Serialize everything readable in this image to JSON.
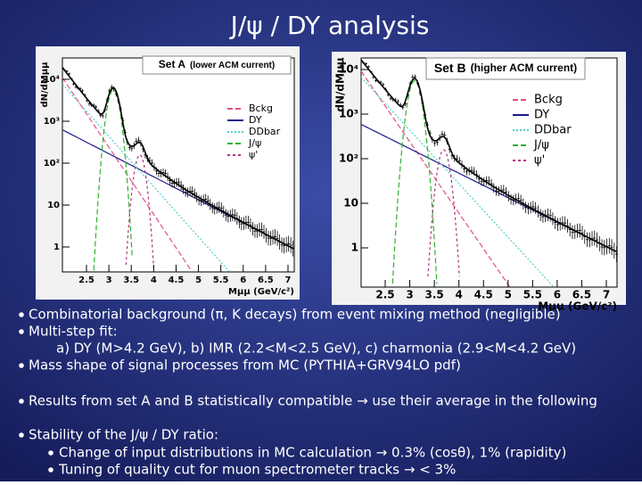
{
  "title": "J/ψ / DY analysis",
  "plots": [
    {
      "label": "Set A",
      "note": "(lower ACM current)",
      "ylabel": "dN/dMμμ",
      "xlabel": "Mμμ (GeV/c²)",
      "yticks": [
        "10⁴",
        "10³",
        "10²",
        "10",
        "1"
      ],
      "xticks": [
        "2.5",
        "3",
        "3.5",
        "4",
        "4.5",
        "5",
        "5.5",
        "6",
        "6.5",
        "7"
      ],
      "legend": [
        "Bckg",
        "DY",
        "DDbar",
        "J/ψ",
        "ψ'"
      ]
    },
    {
      "label": "Set B",
      "note": "(higher ACM current)",
      "ylabel": "dN/dMμμ",
      "xlabel": "Mμμ (GeV/c²)",
      "yticks": [
        "10⁴",
        "10³",
        "10²",
        "10",
        "1"
      ],
      "xticks": [
        "2.5",
        "3",
        "3.5",
        "4",
        "4.5",
        "5",
        "5.5",
        "6",
        "6.5",
        "7"
      ],
      "legend": [
        "Bckg",
        "DY",
        "DDbar",
        "J/ψ",
        "ψ'"
      ]
    }
  ],
  "bullets": [
    {
      "text": "Combinatorial background (π, K decays) from event mixing method (negligible)"
    },
    {
      "text": "Multi-step fit:",
      "detail": "a) DY (M>4.2 GeV), b) IMR (2.2<M<2.5 GeV), c) charmonia (2.9<M<4.2 GeV)"
    },
    {
      "text": "Mass shape of signal processes from MC (PYTHIA+GRV94LO pdf)"
    },
    {
      "text": "Results from set A and B statistically compatible → use their average in the following"
    },
    {
      "text": "Stability of the J/ψ / DY ratio:",
      "sub": [
        "Change of input distributions in MC calculation → 0.3% (cosθ), 1% (rapidity)",
        "Tuning of quality cut for muon spectrometer tracks → < 3%"
      ]
    }
  ]
}
